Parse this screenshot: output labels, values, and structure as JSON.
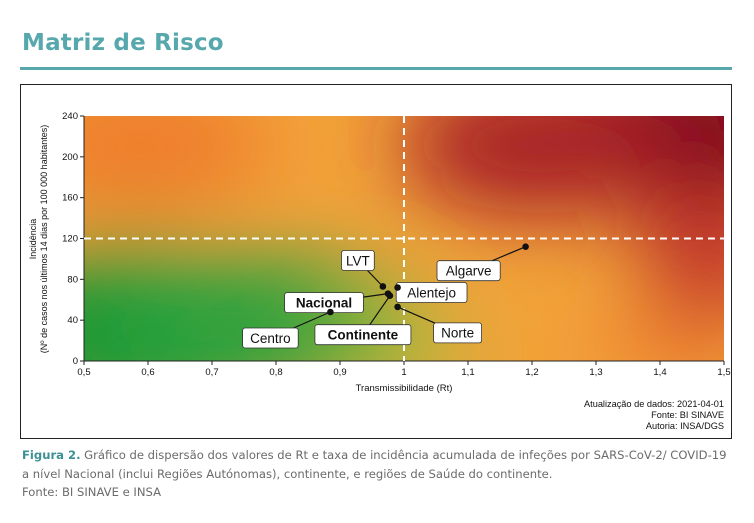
{
  "page": {
    "title": "Matriz de Risco",
    "caption_label": "Figura 2.",
    "caption_text": " Gráfico de dispersão dos valores de Rt e taxa de incidência acumulada de infeções por SARS-CoV-2/ COVID-19 a nível Nacional (inclui Regiões Autónomas), continente, e regiões de Saúde do continente.",
    "source": "Fonte: BI SINAVE e INSA"
  },
  "chart_data": {
    "type": "scatter",
    "xlabel": "Transmissibilidade (Rt)",
    "ylabel_line1": "Incidência",
    "ylabel_line2": "(Nº de casos nos últimos 14 dias por 100 000 habitantes)",
    "xlim": [
      0.5,
      1.5
    ],
    "ylim": [
      0,
      240
    ],
    "xticks": [
      "0,5",
      "0,6",
      "0,7",
      "0,8",
      "0,9",
      "1",
      "1,1",
      "1,2",
      "1,3",
      "1,4",
      "1,5"
    ],
    "yticks": [
      "0",
      "40",
      "80",
      "120",
      "160",
      "200",
      "240"
    ],
    "thresholds": {
      "x": 1.0,
      "y": 120
    },
    "points": [
      {
        "label": "Algarve",
        "x": 1.19,
        "y": 112,
        "bold": false
      },
      {
        "label": "LVT",
        "x": 0.967,
        "y": 73,
        "bold": false
      },
      {
        "label": "Alentejo",
        "x": 0.99,
        "y": 72,
        "bold": false
      },
      {
        "label": "Nacional",
        "x": 0.975,
        "y": 66,
        "bold": true
      },
      {
        "label": "Continente",
        "x": 0.978,
        "y": 64,
        "bold": true
      },
      {
        "label": "Norte",
        "x": 0.99,
        "y": 53,
        "bold": false
      },
      {
        "label": "Centro",
        "x": 0.885,
        "y": 48,
        "bold": false
      }
    ],
    "annotations": [
      "Atualização de dados: 2021-04-01",
      "Fonte: BI SINAVE",
      "Autoria: INSA/DGS"
    ],
    "grid": false,
    "colors": {
      "low": "#1c9a3b",
      "mid": "#f6b13a",
      "high": "#7d0020",
      "frame": "#56a8ad"
    }
  }
}
